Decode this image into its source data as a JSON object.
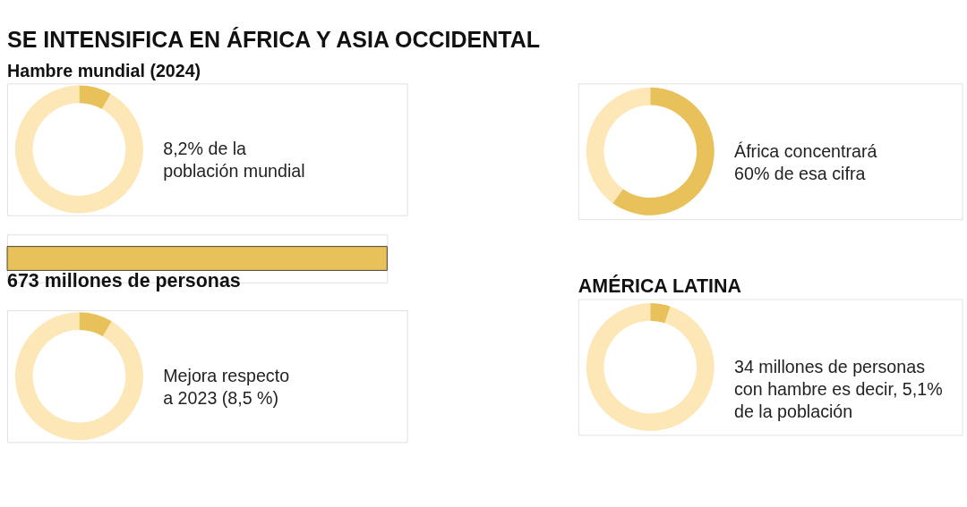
{
  "chart_data": [
    {
      "type": "donut",
      "title": "SE INTENSIFICA EN ÁFRICA Y ASIA OCCIDENTAL",
      "subtitle": "Hambre mundial (2024)",
      "categories": [
        null,
        null
      ],
      "values": [
        8.2,
        91.8
      ],
      "colors": [
        "#e8c15a",
        "#fde7b6"
      ],
      "annotations": [
        "8,2% de la\npoblación mundial"
      ]
    },
    {
      "type": "bar",
      "orientation": "horizontal",
      "categories": [
        null
      ],
      "values": [
        673
      ],
      "colors": [
        "#e8c15a"
      ],
      "value_labels": [
        "673 millones de personas"
      ]
    },
    {
      "type": "donut",
      "categories": [
        null,
        null
      ],
      "values": [
        8.5,
        91.5
      ],
      "colors": [
        "#e8c15a",
        "#fde7b6"
      ],
      "annotations": [
        "Mejora respecto\na 2023 (8,5 %)"
      ]
    },
    {
      "type": "donut",
      "categories": [
        null,
        null
      ],
      "values": [
        60,
        40
      ],
      "colors": [
        "#e8c15a",
        "#fde7b6"
      ],
      "annotations": [
        "África concentrará\n60% de esa cifra"
      ]
    },
    {
      "type": "donut",
      "title": "AMÉRICA LATINA",
      "categories": [
        null,
        null
      ],
      "values": [
        5.1,
        94.9
      ],
      "colors": [
        "#e8c15a",
        "#fde7b6"
      ],
      "annotations": [
        "34 millones de personas\ncon hambre es decir, 5,1%\nde la población"
      ]
    }
  ]
}
